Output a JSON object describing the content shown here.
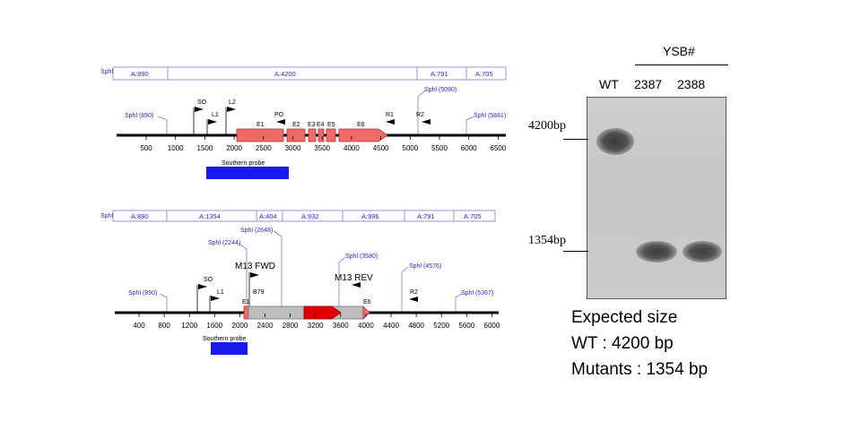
{
  "map1": {
    "sphl_label": "Sphl",
    "segments": [
      "A:890",
      "A:4200",
      "A:791",
      "A:705"
    ],
    "sites": [
      "Sphl (890)",
      "Sphl (5090)",
      "Sphl (5881)"
    ],
    "primers": [
      "SO",
      "L1",
      "L2",
      "PO",
      "R1",
      "R2"
    ],
    "exons": [
      "E1",
      "E2",
      "E3",
      "E4",
      "E5",
      "E6"
    ],
    "ticks": [
      "500",
      "1000",
      "1500",
      "2000",
      "2500",
      "3000",
      "3500",
      "4000",
      "4500",
      "5000",
      "5500",
      "6000",
      "6500"
    ],
    "probe_label": "Southern probe"
  },
  "map2": {
    "sphl_label": "Sphl",
    "segments": [
      "A:890",
      "A:1354",
      "A:404",
      "A:932",
      "A:996",
      "A:791",
      "A:705"
    ],
    "sites": [
      "Sphl (890)",
      "Sphl (2244)",
      "Sphl (2648)",
      "Sphl (3580)",
      "Sphl (4576)",
      "Sphl (5367)"
    ],
    "primers": [
      "SO",
      "L1",
      "B79",
      "R2"
    ],
    "m13_fwd": "M13 FWD",
    "m13_rev": "M13 REV",
    "exons": [
      "E1",
      "E6"
    ],
    "ticks": [
      "400",
      "800",
      "1200",
      "1600",
      "2000",
      "2400",
      "2800",
      "3200",
      "3600",
      "4000",
      "4400",
      "4800",
      "5200",
      "5600",
      "6000"
    ],
    "probe_label": "Southern probe"
  },
  "gel": {
    "group_label": "YSB#",
    "lanes": [
      "WT",
      "2387",
      "2388"
    ],
    "markers": [
      "4200bp",
      "1354bp"
    ]
  },
  "caption": {
    "line1": "Expected size",
    "line2": "WT : 4200 bp",
    "line3": "Mutants : 1354 bp"
  },
  "colors": {
    "site_blue": "#2a2acc",
    "exon_red": "#f06a6a",
    "insert_red": "#e00000",
    "probe_blue": "#1a1aee",
    "gray_box": "#bdbdbd"
  }
}
